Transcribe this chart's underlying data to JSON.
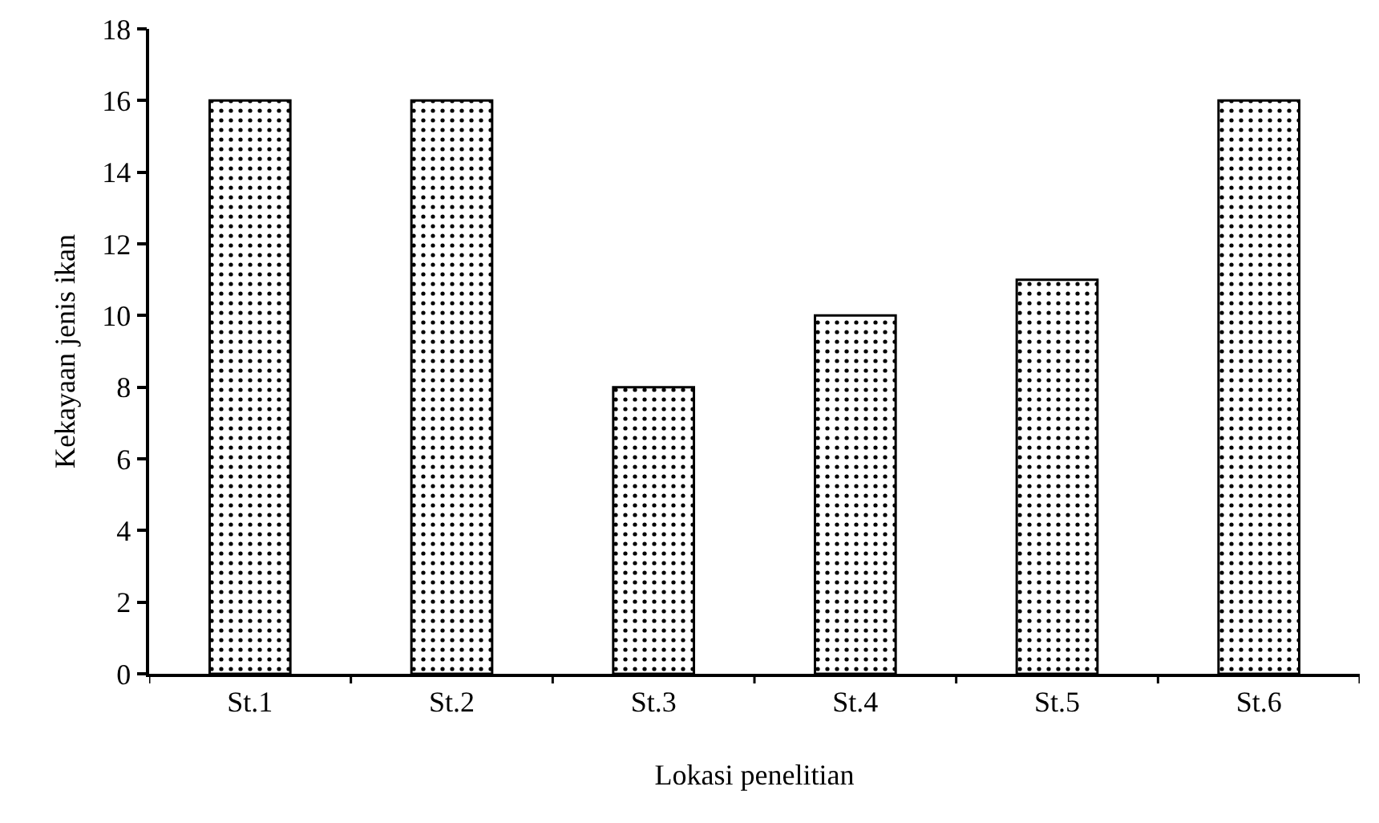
{
  "chart_data": {
    "type": "bar",
    "xlabel": "Lokasi penelitian",
    "ylabel": "Kekayaan jenis ikan",
    "categories": [
      "St.1",
      "St.2",
      "St.3",
      "St.4",
      "St.5",
      "St.6"
    ],
    "values": [
      16,
      16,
      8,
      10,
      11,
      16
    ],
    "color": "#000000",
    "ylim": [
      0,
      18
    ],
    "yticks": [
      0,
      2,
      4,
      6,
      8,
      10,
      12,
      14,
      16,
      18
    ],
    "grid": false
  }
}
